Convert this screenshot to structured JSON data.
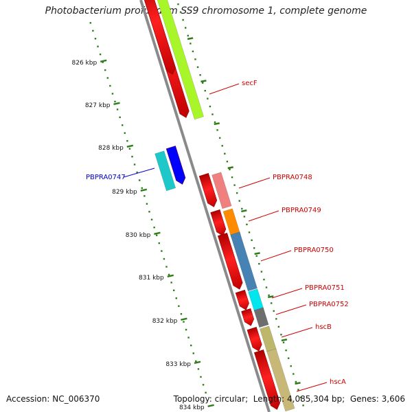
{
  "title": "Photobacterium profundum SS9 chromosome 1, complete genome",
  "footer": {
    "accession_label": "Accession:",
    "accession": "NC_006370",
    "topology_label": "Topology:",
    "topology": "circular",
    "length_label": "Length:",
    "length": "4,085,304 bp",
    "genes_label": "Genes:",
    "genes": "3,606"
  },
  "colors": {
    "backbone": "#8a8a8a",
    "cds": "#ff0000",
    "ruler_tick": "#2e7d1a",
    "label_red": "#cc0000",
    "label_blue": "#0000cc"
  },
  "ruler": {
    "unit": "kbp",
    "ticks": [
      "826 kbp",
      "827 kbp",
      "828 kbp",
      "829 kbp",
      "830 kbp",
      "831 kbp",
      "832 kbp",
      "833 kbp",
      "834 kbp"
    ]
  },
  "features": [
    {
      "label": "secF",
      "strand": "+",
      "track_color": "#a8f52a",
      "label_color": "#cc0000"
    },
    {
      "label": "PBPRA0747",
      "strand": "-",
      "track_color": "#1ec8c8",
      "cds_color": "#0000ff",
      "label_color": "#0000cc"
    },
    {
      "label": "PBPRA0748",
      "strand": "+",
      "track_color": "#f08080",
      "label_color": "#cc0000"
    },
    {
      "label": "PBPRA0749",
      "strand": "+",
      "track_color": "#ff8c00",
      "label_color": "#cc0000"
    },
    {
      "label": "PBPRA0750",
      "strand": "+",
      "track_color": "#4682b4",
      "label_color": "#cc0000"
    },
    {
      "label": "PBPRA0751",
      "strand": "+",
      "track_color": "#00e5ee",
      "label_color": "#cc0000"
    },
    {
      "label": "PBPRA0752",
      "strand": "+",
      "track_color": "#6e6e6e",
      "label_color": "#cc0000"
    },
    {
      "label": "hscB",
      "strand": "+",
      "track_color": "#bdb76b",
      "label_color": "#cc0000"
    },
    {
      "label": "hscA",
      "strand": "+",
      "track_color": "#c8b878",
      "label_color": "#cc0000"
    }
  ]
}
